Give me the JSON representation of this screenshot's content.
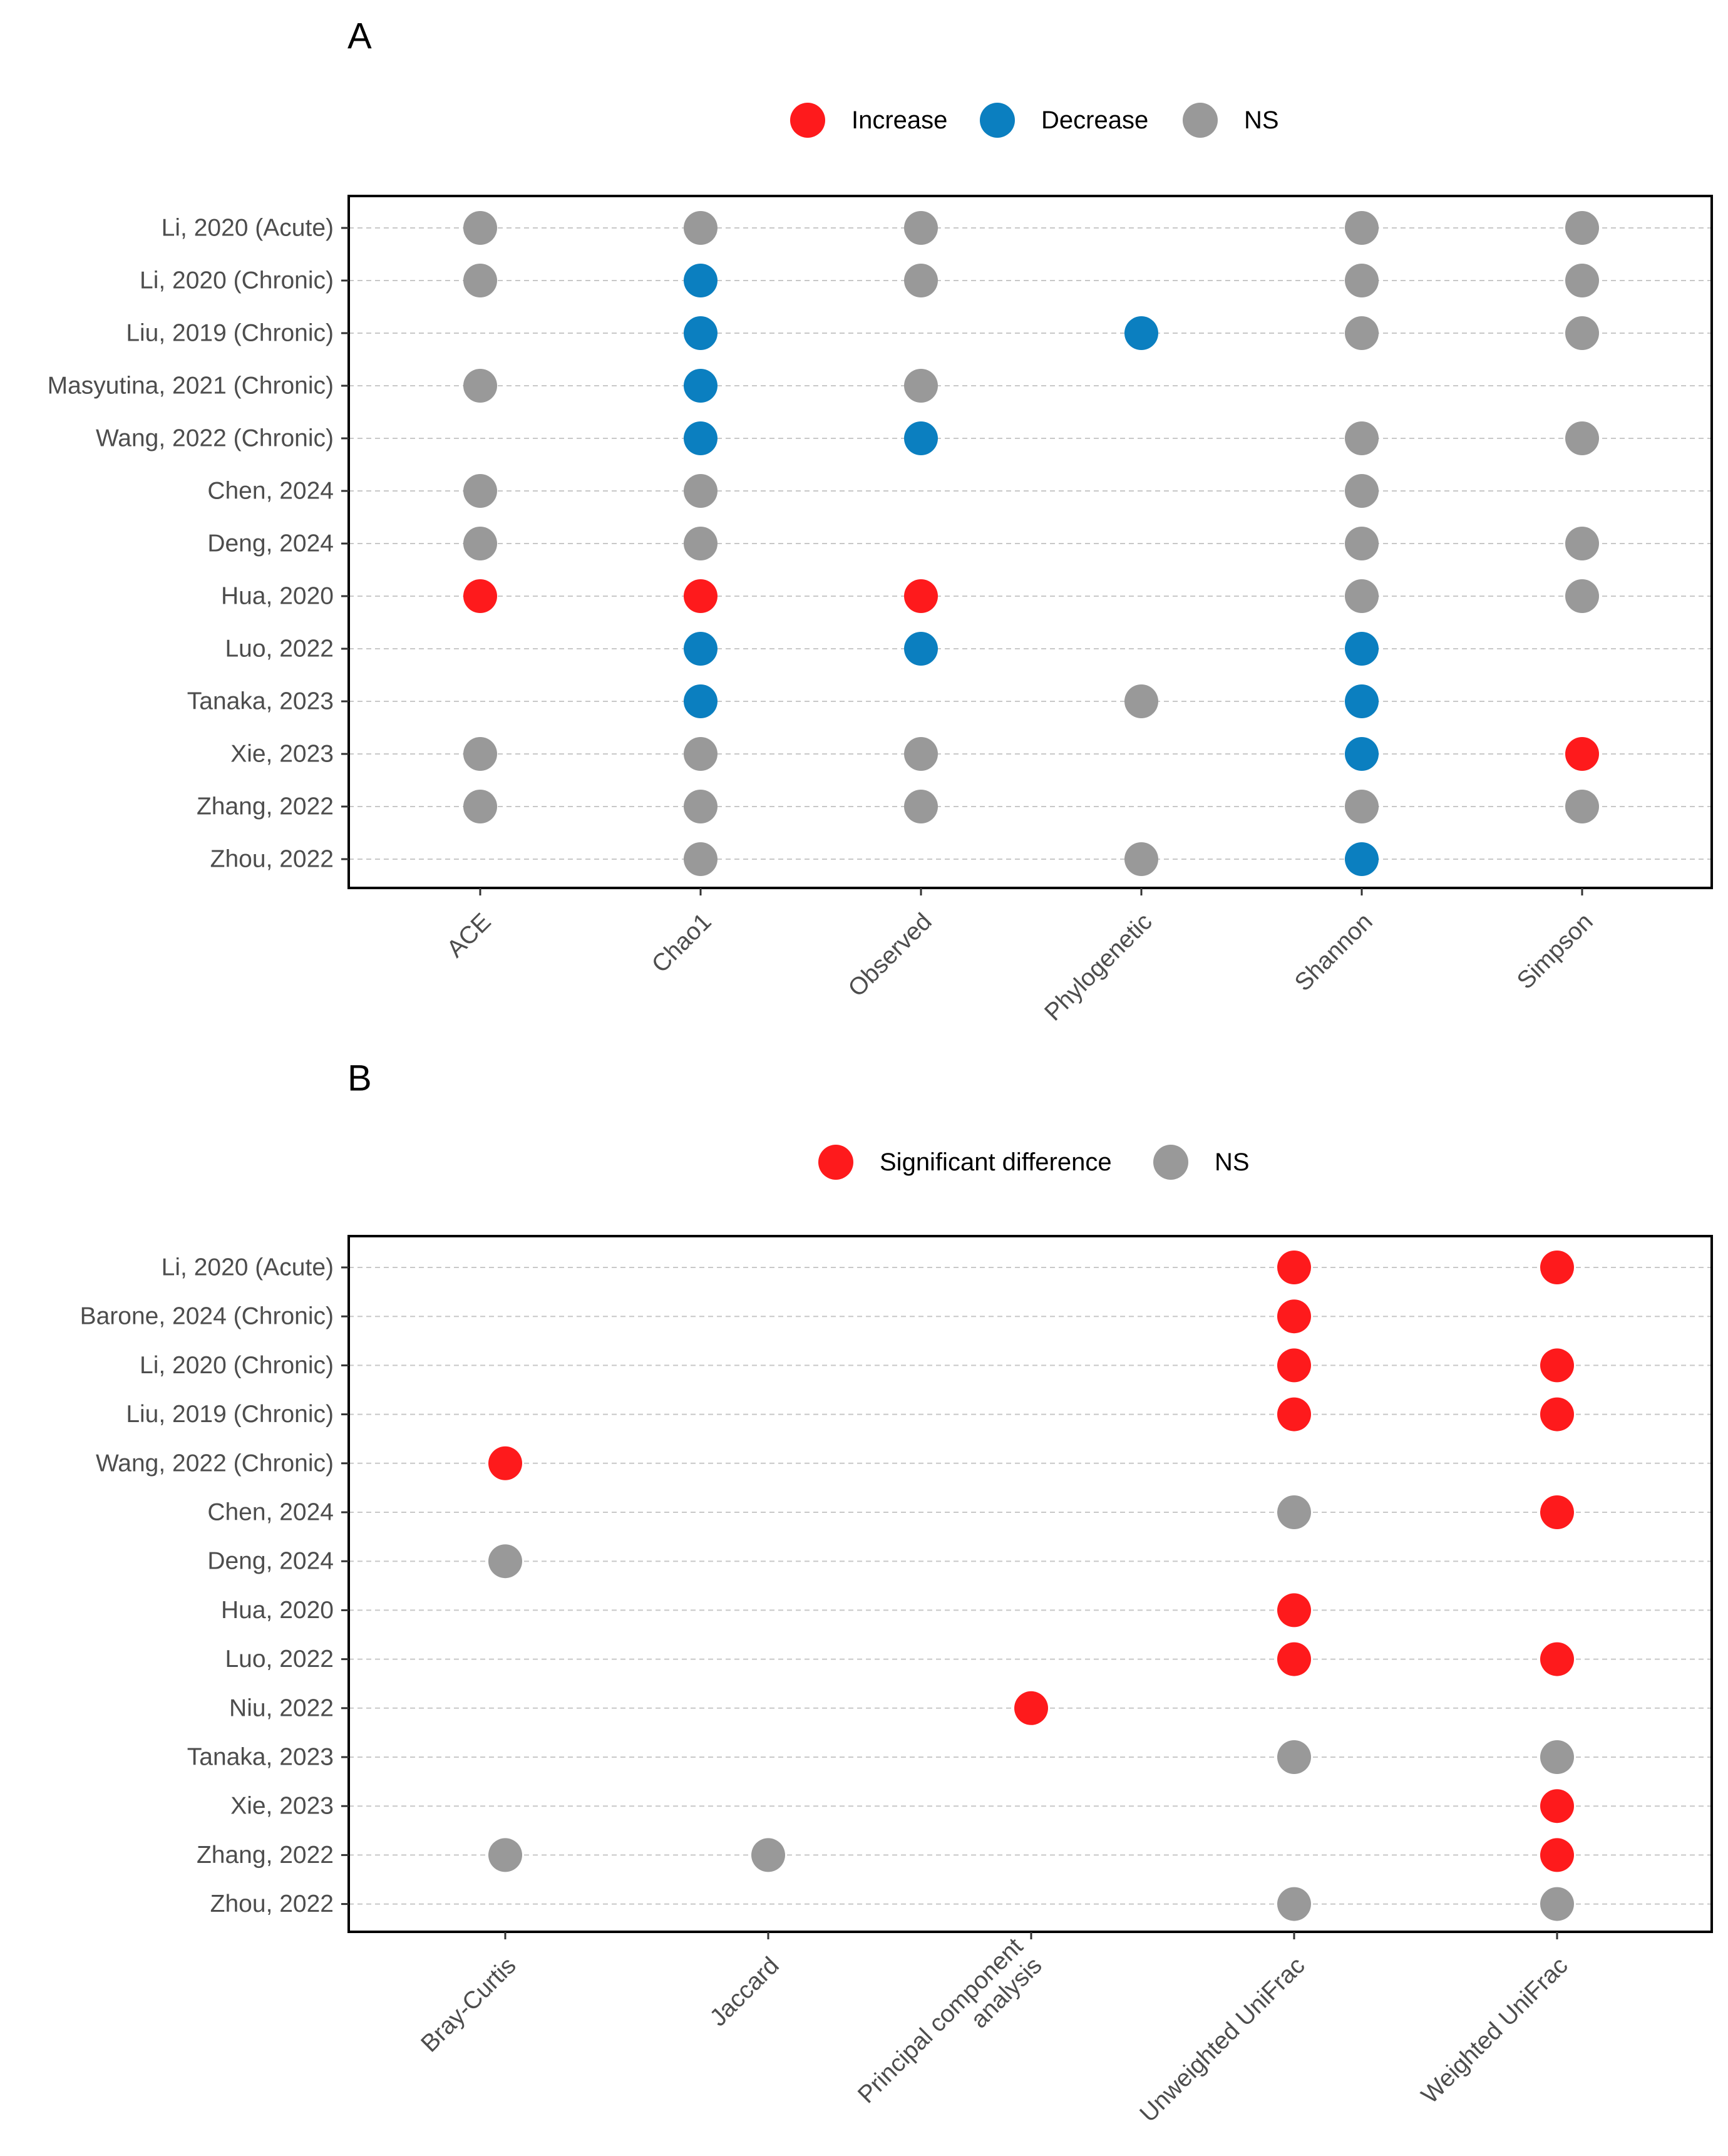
{
  "chart_data": [
    {
      "type": "dot-matrix",
      "panel_label": "A",
      "legend": [
        {
          "key": "increase",
          "label": "Increase",
          "color": "#fe1a1c"
        },
        {
          "key": "decrease",
          "label": "Decrease",
          "color": "#0b7fc0"
        },
        {
          "key": "ns",
          "label": "NS",
          "color": "#999999"
        }
      ],
      "x_categories": [
        "ACE",
        "Chao1",
        "Observed",
        "Phylogenetic",
        "Shannon",
        "Simpson"
      ],
      "y_categories": [
        "Li, 2020 (Acute)",
        "Li, 2020 (Chronic)",
        "Liu, 2019 (Chronic)",
        "Masyutina, 2021 (Chronic)",
        "Wang, 2022 (Chronic)",
        "Chen, 2024",
        "Deng, 2024",
        "Hua, 2020",
        "Luo, 2022",
        "Tanaka, 2023",
        "Xie, 2023",
        "Zhang, 2022",
        "Zhou, 2022"
      ],
      "points": [
        {
          "study": "Li, 2020 (Acute)",
          "metric": "ACE",
          "result": "ns"
        },
        {
          "study": "Li, 2020 (Acute)",
          "metric": "Chao1",
          "result": "ns"
        },
        {
          "study": "Li, 2020 (Acute)",
          "metric": "Observed",
          "result": "ns"
        },
        {
          "study": "Li, 2020 (Acute)",
          "metric": "Shannon",
          "result": "ns"
        },
        {
          "study": "Li, 2020 (Acute)",
          "metric": "Simpson",
          "result": "ns"
        },
        {
          "study": "Li, 2020 (Chronic)",
          "metric": "ACE",
          "result": "ns"
        },
        {
          "study": "Li, 2020 (Chronic)",
          "metric": "Chao1",
          "result": "decrease"
        },
        {
          "study": "Li, 2020 (Chronic)",
          "metric": "Observed",
          "result": "ns"
        },
        {
          "study": "Li, 2020 (Chronic)",
          "metric": "Shannon",
          "result": "ns"
        },
        {
          "study": "Li, 2020 (Chronic)",
          "metric": "Simpson",
          "result": "ns"
        },
        {
          "study": "Liu, 2019 (Chronic)",
          "metric": "Chao1",
          "result": "decrease"
        },
        {
          "study": "Liu, 2019 (Chronic)",
          "metric": "Phylogenetic",
          "result": "decrease"
        },
        {
          "study": "Liu, 2019 (Chronic)",
          "metric": "Shannon",
          "result": "ns"
        },
        {
          "study": "Liu, 2019 (Chronic)",
          "metric": "Simpson",
          "result": "ns"
        },
        {
          "study": "Masyutina, 2021 (Chronic)",
          "metric": "ACE",
          "result": "ns"
        },
        {
          "study": "Masyutina, 2021 (Chronic)",
          "metric": "Chao1",
          "result": "decrease"
        },
        {
          "study": "Masyutina, 2021 (Chronic)",
          "metric": "Observed",
          "result": "ns"
        },
        {
          "study": "Wang, 2022 (Chronic)",
          "metric": "Chao1",
          "result": "decrease"
        },
        {
          "study": "Wang, 2022 (Chronic)",
          "metric": "Observed",
          "result": "decrease"
        },
        {
          "study": "Wang, 2022 (Chronic)",
          "metric": "Shannon",
          "result": "ns"
        },
        {
          "study": "Wang, 2022 (Chronic)",
          "metric": "Simpson",
          "result": "ns"
        },
        {
          "study": "Chen, 2024",
          "metric": "ACE",
          "result": "ns"
        },
        {
          "study": "Chen, 2024",
          "metric": "Chao1",
          "result": "ns"
        },
        {
          "study": "Chen, 2024",
          "metric": "Shannon",
          "result": "ns"
        },
        {
          "study": "Deng, 2024",
          "metric": "ACE",
          "result": "ns"
        },
        {
          "study": "Deng, 2024",
          "metric": "Chao1",
          "result": "ns"
        },
        {
          "study": "Deng, 2024",
          "metric": "Shannon",
          "result": "ns"
        },
        {
          "study": "Deng, 2024",
          "metric": "Simpson",
          "result": "ns"
        },
        {
          "study": "Hua, 2020",
          "metric": "ACE",
          "result": "increase"
        },
        {
          "study": "Hua, 2020",
          "metric": "Chao1",
          "result": "increase"
        },
        {
          "study": "Hua, 2020",
          "metric": "Observed",
          "result": "increase"
        },
        {
          "study": "Hua, 2020",
          "metric": "Shannon",
          "result": "ns"
        },
        {
          "study": "Hua, 2020",
          "metric": "Simpson",
          "result": "ns"
        },
        {
          "study": "Luo, 2022",
          "metric": "Chao1",
          "result": "decrease"
        },
        {
          "study": "Luo, 2022",
          "metric": "Observed",
          "result": "decrease"
        },
        {
          "study": "Luo, 2022",
          "metric": "Shannon",
          "result": "decrease"
        },
        {
          "study": "Tanaka, 2023",
          "metric": "Chao1",
          "result": "decrease"
        },
        {
          "study": "Tanaka, 2023",
          "metric": "Phylogenetic",
          "result": "ns"
        },
        {
          "study": "Tanaka, 2023",
          "metric": "Shannon",
          "result": "decrease"
        },
        {
          "study": "Xie, 2023",
          "metric": "ACE",
          "result": "ns"
        },
        {
          "study": "Xie, 2023",
          "metric": "Chao1",
          "result": "ns"
        },
        {
          "study": "Xie, 2023",
          "metric": "Observed",
          "result": "ns"
        },
        {
          "study": "Xie, 2023",
          "metric": "Shannon",
          "result": "decrease"
        },
        {
          "study": "Xie, 2023",
          "metric": "Simpson",
          "result": "increase"
        },
        {
          "study": "Zhang, 2022",
          "metric": "ACE",
          "result": "ns"
        },
        {
          "study": "Zhang, 2022",
          "metric": "Chao1",
          "result": "ns"
        },
        {
          "study": "Zhang, 2022",
          "metric": "Observed",
          "result": "ns"
        },
        {
          "study": "Zhang, 2022",
          "metric": "Shannon",
          "result": "ns"
        },
        {
          "study": "Zhang, 2022",
          "metric": "Simpson",
          "result": "ns"
        },
        {
          "study": "Zhou, 2022",
          "metric": "Chao1",
          "result": "ns"
        },
        {
          "study": "Zhou, 2022",
          "metric": "Phylogenetic",
          "result": "ns"
        },
        {
          "study": "Zhou, 2022",
          "metric": "Shannon",
          "result": "decrease"
        }
      ],
      "grid": "horizontal dashed",
      "legend_position": "top"
    },
    {
      "type": "dot-matrix",
      "panel_label": "B",
      "legend": [
        {
          "key": "sig",
          "label": "Significant difference",
          "color": "#fe1a1c"
        },
        {
          "key": "ns",
          "label": "NS",
          "color": "#999999"
        }
      ],
      "x_categories": [
        "Bray-Curtis",
        "Jaccard",
        "Principal component\nanalysis",
        "Unweighted UniFrac",
        "Weighted UniFrac"
      ],
      "y_categories": [
        "Li, 2020 (Acute)",
        "Barone, 2024 (Chronic)",
        "Li, 2020 (Chronic)",
        "Liu, 2019 (Chronic)",
        "Wang, 2022 (Chronic)",
        "Chen, 2024",
        "Deng, 2024",
        "Hua, 2020",
        "Luo, 2022",
        "Niu, 2022",
        "Tanaka, 2023",
        "Xie, 2023",
        "Zhang, 2022",
        "Zhou, 2022"
      ],
      "points": [
        {
          "study": "Li, 2020 (Acute)",
          "metric": "Unweighted UniFrac",
          "result": "sig"
        },
        {
          "study": "Li, 2020 (Acute)",
          "metric": "Weighted UniFrac",
          "result": "sig"
        },
        {
          "study": "Barone, 2024 (Chronic)",
          "metric": "Unweighted UniFrac",
          "result": "sig"
        },
        {
          "study": "Li, 2020 (Chronic)",
          "metric": "Unweighted UniFrac",
          "result": "sig"
        },
        {
          "study": "Li, 2020 (Chronic)",
          "metric": "Weighted UniFrac",
          "result": "sig"
        },
        {
          "study": "Liu, 2019 (Chronic)",
          "metric": "Unweighted UniFrac",
          "result": "sig"
        },
        {
          "study": "Liu, 2019 (Chronic)",
          "metric": "Weighted UniFrac",
          "result": "sig"
        },
        {
          "study": "Wang, 2022 (Chronic)",
          "metric": "Bray-Curtis",
          "result": "sig"
        },
        {
          "study": "Chen, 2024",
          "metric": "Unweighted UniFrac",
          "result": "ns"
        },
        {
          "study": "Chen, 2024",
          "metric": "Weighted UniFrac",
          "result": "sig"
        },
        {
          "study": "Deng, 2024",
          "metric": "Bray-Curtis",
          "result": "ns"
        },
        {
          "study": "Hua, 2020",
          "metric": "Unweighted UniFrac",
          "result": "sig"
        },
        {
          "study": "Luo, 2022",
          "metric": "Unweighted UniFrac",
          "result": "sig"
        },
        {
          "study": "Luo, 2022",
          "metric": "Weighted UniFrac",
          "result": "sig"
        },
        {
          "study": "Niu, 2022",
          "metric": "Principal component\nanalysis",
          "result": "sig"
        },
        {
          "study": "Tanaka, 2023",
          "metric": "Unweighted UniFrac",
          "result": "ns"
        },
        {
          "study": "Tanaka, 2023",
          "metric": "Weighted UniFrac",
          "result": "ns"
        },
        {
          "study": "Xie, 2023",
          "metric": "Weighted UniFrac",
          "result": "sig"
        },
        {
          "study": "Zhang, 2022",
          "metric": "Bray-Curtis",
          "result": "ns"
        },
        {
          "study": "Zhang, 2022",
          "metric": "Jaccard",
          "result": "ns"
        },
        {
          "study": "Zhang, 2022",
          "metric": "Weighted UniFrac",
          "result": "sig"
        },
        {
          "study": "Zhou, 2022",
          "metric": "Unweighted UniFrac",
          "result": "ns"
        },
        {
          "study": "Zhou, 2022",
          "metric": "Weighted UniFrac",
          "result": "ns"
        }
      ],
      "grid": "horizontal dashed",
      "legend_position": "top"
    }
  ]
}
